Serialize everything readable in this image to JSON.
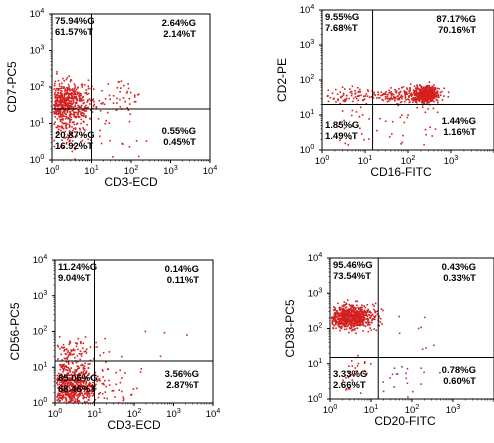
{
  "chart_data": [
    {
      "type": "scatter",
      "xlabel": "CD3-ECD",
      "ylabel": "CD7-PC5",
      "x_ticks": [
        "10^0",
        "10^1",
        "10^2",
        "10^3",
        "10^4"
      ],
      "y_ticks": [
        "10^0",
        "10^1",
        "10^2",
        "10^3",
        "10^4"
      ],
      "xlim": [
        1,
        10000
      ],
      "ylim": [
        1,
        10000
      ],
      "log_scale": true,
      "gates": {
        "x": 10,
        "y": 25
      },
      "quadrants": {
        "upper_left": [
          "75.94%G",
          "61.57%T"
        ],
        "upper_right": [
          "2.64%G",
          "2.14%T"
        ],
        "lower_left": [
          "20.87%G",
          "16.92%T"
        ],
        "lower_right": [
          "0.55%G",
          "0.45%T"
        ]
      },
      "populations": [
        {
          "x": 2,
          "y": 40,
          "spread_x": 0.35,
          "spread_y": 0.28,
          "n": 650,
          "color": "#d42020"
        },
        {
          "x": 60,
          "y": 50,
          "spread_x": 0.35,
          "spread_y": 0.3,
          "n": 40,
          "color": "#d42020"
        },
        {
          "x": 2,
          "y": 6,
          "spread_x": 0.3,
          "spread_y": 0.3,
          "n": 110,
          "color": "#d42020"
        },
        {
          "x": 40,
          "y": 3,
          "spread_x": 0.5,
          "spread_y": 0.35,
          "n": 18,
          "color": "#d42020"
        }
      ]
    },
    {
      "type": "scatter",
      "xlabel": "CD16-FITC",
      "ylabel": "CD2-PE",
      "x_ticks": [
        "10^0",
        "10^1",
        "10^2",
        "10^3",
        "10^4"
      ],
      "y_ticks": [
        "10^0",
        "10^1",
        "10^2",
        "10^3",
        "10^4"
      ],
      "xlim": [
        1,
        10000
      ],
      "ylim": [
        1,
        10000
      ],
      "log_scale": true,
      "gates": {
        "x": 15,
        "y": 20
      },
      "quadrants": {
        "upper_left": [
          "9.55%G",
          "7.68%T"
        ],
        "upper_right": [
          "87.17%G",
          "70.16%T"
        ],
        "lower_left": [
          "1.85%G",
          "1.49%T"
        ],
        "lower_right": [
          "1.44%G",
          "1.16%T"
        ]
      },
      "populations": [
        {
          "x": 250,
          "y": 40,
          "spread_x": 0.14,
          "spread_y": 0.11,
          "n": 650,
          "color": "#d42020"
        },
        {
          "x": 60,
          "y": 38,
          "spread_x": 0.3,
          "spread_y": 0.12,
          "n": 140,
          "color": "#d42020"
        },
        {
          "x": 4,
          "y": 38,
          "spread_x": 0.3,
          "spread_y": 0.12,
          "n": 70,
          "color": "#d42020"
        },
        {
          "x": 6,
          "y": 6,
          "spread_x": 0.3,
          "spread_y": 0.3,
          "n": 25,
          "color": "#d42020"
        },
        {
          "x": 150,
          "y": 6,
          "spread_x": 0.4,
          "spread_y": 0.3,
          "n": 20,
          "color": "#d42020"
        }
      ]
    },
    {
      "type": "scatter",
      "xlabel": "CD3-ECD",
      "ylabel": "CD56-PC5",
      "x_ticks": [
        "10^0",
        "10^1",
        "10^2",
        "10^3",
        "10^4"
      ],
      "y_ticks": [
        "10^0",
        "10^1",
        "10^2",
        "10^3",
        "10^4"
      ],
      "xlim": [
        1,
        10000
      ],
      "ylim": [
        1,
        10000
      ],
      "log_scale": true,
      "gates": {
        "x": 10,
        "y": 15
      },
      "quadrants": {
        "upper_left": [
          "11.24%G",
          "9.04%T"
        ],
        "upper_right": [
          "0.14%G",
          "0.11%T"
        ],
        "lower_left": [
          "85.06%G",
          "68.46%T"
        ],
        "lower_right": [
          "3.56%G",
          "2.87%T"
        ]
      },
      "populations": [
        {
          "x": 2.2,
          "y": 3,
          "spread_x": 0.35,
          "spread_y": 0.32,
          "n": 750,
          "color": "#d42020"
        },
        {
          "x": 2.5,
          "y": 30,
          "spread_x": 0.35,
          "spread_y": 0.25,
          "n": 90,
          "color": "#d42020"
        },
        {
          "x": 30,
          "y": 3,
          "spread_x": 0.35,
          "spread_y": 0.3,
          "n": 40,
          "color": "#d42020"
        },
        {
          "x": 150,
          "y": 80,
          "spread_x": 0.5,
          "spread_y": 0.4,
          "n": 5,
          "color": "#d42020"
        }
      ]
    },
    {
      "type": "scatter",
      "xlabel": "CD20-FITC",
      "ylabel": "CD38-PC5",
      "x_ticks": [
        "10^0",
        "10^1",
        "10^2",
        "10^3",
        "10^4"
      ],
      "y_ticks": [
        "10^0",
        "10^1",
        "10^2",
        "10^3",
        "10^4"
      ],
      "xlim": [
        1,
        10000
      ],
      "ylim": [
        1,
        10000
      ],
      "log_scale": true,
      "gates": {
        "x": 15,
        "y": 15
      },
      "quadrants": {
        "upper_left": [
          "95.46%G",
          "73.54%T"
        ],
        "upper_right": [
          "0.43%G",
          "0.33%T"
        ],
        "lower_left": [
          "3.33%G",
          "2.66%T"
        ],
        "lower_right": [
          "0.78%G",
          "0.60%T"
        ]
      },
      "populations": [
        {
          "x": 3,
          "y": 220,
          "spread_x": 0.3,
          "spread_y": 0.17,
          "n": 750,
          "color": "#d42020"
        },
        {
          "x": 3,
          "y": 5,
          "spread_x": 0.25,
          "spread_y": 0.3,
          "n": 30,
          "color": "#d42020"
        },
        {
          "x": 60,
          "y": 4,
          "spread_x": 0.4,
          "spread_y": 0.3,
          "n": 20,
          "color": "#a0308a"
        },
        {
          "x": 80,
          "y": 100,
          "spread_x": 0.4,
          "spread_y": 0.4,
          "n": 8,
          "color": "#a0308a"
        }
      ]
    }
  ]
}
